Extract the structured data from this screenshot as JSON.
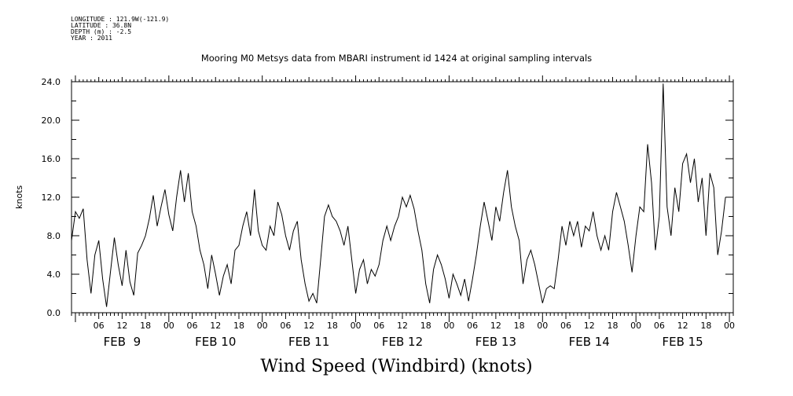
{
  "header": {
    "meta_lines": [
      "LONGITUDE : 121.9W(-121.9)",
      "LATITUDE : 36.8N",
      "DEPTH (m) : -2.5",
      "YEAR : 2011"
    ]
  },
  "chart_data": {
    "type": "line",
    "title": "Mooring M0 Metsys data from MBARI instrument id 1424 at original sampling intervals",
    "xlabel": "Wind Speed (Windbird) (knots)",
    "ylabel": "knots",
    "ylim": [
      0,
      24
    ],
    "yticks": [
      "0.0",
      "4.0",
      "8.0",
      "12.0",
      "16.0",
      "20.0",
      "24.0"
    ],
    "x_hour_ticks": [
      "06",
      "12",
      "18",
      "00",
      "06",
      "12",
      "18",
      "00",
      "06",
      "12",
      "18",
      "00",
      "06",
      "12",
      "18",
      "00",
      "06",
      "12",
      "18",
      "00",
      "06",
      "12",
      "18",
      "00",
      "06",
      "12",
      "18",
      "00"
    ],
    "x_day_labels": [
      "FEB  9",
      "FEB 10",
      "FEB 11",
      "FEB 12",
      "FEB 13",
      "FEB 14",
      "FEB 15"
    ],
    "x_unit": "hours since 2011-02-09 00:00",
    "xlim": [
      -1,
      169
    ],
    "grid": false,
    "series": [
      {
        "values": [
          [
            -1,
            7.5
          ],
          [
            0,
            10.5
          ],
          [
            1,
            9.8
          ],
          [
            2,
            10.8
          ],
          [
            3,
            5.5
          ],
          [
            4,
            2.0
          ],
          [
            5,
            6.0
          ],
          [
            6,
            7.5
          ],
          [
            7,
            3.5
          ],
          [
            8,
            0.6
          ],
          [
            9,
            4.2
          ],
          [
            10,
            7.8
          ],
          [
            11,
            5.0
          ],
          [
            12,
            2.8
          ],
          [
            13,
            6.5
          ],
          [
            14,
            3.2
          ],
          [
            15,
            1.8
          ],
          [
            16,
            6.2
          ],
          [
            17,
            7.0
          ],
          [
            18,
            8.0
          ],
          [
            19,
            9.8
          ],
          [
            20,
            12.2
          ],
          [
            21,
            9.0
          ],
          [
            22,
            11.0
          ],
          [
            23,
            12.8
          ],
          [
            24,
            10.2
          ],
          [
            25,
            8.5
          ],
          [
            26,
            12.0
          ],
          [
            27,
            14.8
          ],
          [
            28,
            11.5
          ],
          [
            29,
            14.5
          ],
          [
            30,
            10.5
          ],
          [
            31,
            9.0
          ],
          [
            32,
            6.5
          ],
          [
            33,
            5.0
          ],
          [
            34,
            2.5
          ],
          [
            35,
            6.0
          ],
          [
            36,
            4.0
          ],
          [
            37,
            1.8
          ],
          [
            38,
            3.8
          ],
          [
            39,
            5.0
          ],
          [
            40,
            3.0
          ],
          [
            41,
            6.5
          ],
          [
            42,
            7.0
          ],
          [
            43,
            9.0
          ],
          [
            44,
            10.5
          ],
          [
            45,
            8.0
          ],
          [
            46,
            12.8
          ],
          [
            47,
            8.5
          ],
          [
            48,
            7.0
          ],
          [
            49,
            6.5
          ],
          [
            50,
            9.0
          ],
          [
            51,
            8.0
          ],
          [
            52,
            11.5
          ],
          [
            53,
            10.2
          ],
          [
            54,
            8.0
          ],
          [
            55,
            6.5
          ],
          [
            56,
            8.5
          ],
          [
            57,
            9.5
          ],
          [
            58,
            5.5
          ],
          [
            59,
            3.0
          ],
          [
            60,
            1.2
          ],
          [
            61,
            2.0
          ],
          [
            62,
            1.0
          ],
          [
            63,
            5.5
          ],
          [
            64,
            10.0
          ],
          [
            65,
            11.2
          ],
          [
            66,
            10.0
          ],
          [
            67,
            9.5
          ],
          [
            68,
            8.5
          ],
          [
            69,
            7.0
          ],
          [
            70,
            9.0
          ],
          [
            71,
            5.5
          ],
          [
            72,
            2.0
          ],
          [
            73,
            4.5
          ],
          [
            74,
            5.5
          ],
          [
            75,
            3.0
          ],
          [
            76,
            4.5
          ],
          [
            77,
            3.8
          ],
          [
            78,
            5.0
          ],
          [
            79,
            7.5
          ],
          [
            80,
            9.0
          ],
          [
            81,
            7.5
          ],
          [
            82,
            9.0
          ],
          [
            83,
            10.0
          ],
          [
            84,
            12.0
          ],
          [
            85,
            11.0
          ],
          [
            86,
            12.2
          ],
          [
            87,
            10.8
          ],
          [
            88,
            8.5
          ],
          [
            89,
            6.5
          ],
          [
            90,
            3.0
          ],
          [
            91,
            1.0
          ],
          [
            92,
            4.5
          ],
          [
            93,
            6.0
          ],
          [
            94,
            5.0
          ],
          [
            95,
            3.5
          ],
          [
            96,
            1.5
          ],
          [
            97,
            4.0
          ],
          [
            98,
            3.0
          ],
          [
            99,
            1.8
          ],
          [
            100,
            3.5
          ],
          [
            101,
            1.2
          ],
          [
            102,
            3.5
          ],
          [
            103,
            6.0
          ],
          [
            104,
            9.0
          ],
          [
            105,
            11.5
          ],
          [
            106,
            9.5
          ],
          [
            107,
            7.5
          ],
          [
            108,
            11.0
          ],
          [
            109,
            9.5
          ],
          [
            110,
            12.5
          ],
          [
            111,
            14.8
          ],
          [
            112,
            11.0
          ],
          [
            113,
            9.0
          ],
          [
            114,
            7.5
          ],
          [
            115,
            3.0
          ],
          [
            116,
            5.5
          ],
          [
            117,
            6.5
          ],
          [
            118,
            5.0
          ],
          [
            119,
            3.0
          ],
          [
            120,
            1.0
          ],
          [
            121,
            2.5
          ],
          [
            122,
            2.8
          ],
          [
            123,
            2.5
          ],
          [
            124,
            5.5
          ],
          [
            125,
            9.0
          ],
          [
            126,
            7.0
          ],
          [
            127,
            9.5
          ],
          [
            128,
            8.0
          ],
          [
            129,
            9.5
          ],
          [
            130,
            6.8
          ],
          [
            131,
            9.0
          ],
          [
            132,
            8.5
          ],
          [
            133,
            10.5
          ],
          [
            134,
            8.0
          ],
          [
            135,
            6.5
          ],
          [
            136,
            8.0
          ],
          [
            137,
            6.5
          ],
          [
            138,
            10.5
          ],
          [
            139,
            12.5
          ],
          [
            140,
            11.0
          ],
          [
            141,
            9.5
          ],
          [
            142,
            7.0
          ],
          [
            143,
            4.2
          ],
          [
            144,
            8.0
          ],
          [
            145,
            11.0
          ],
          [
            146,
            10.5
          ],
          [
            147,
            17.5
          ],
          [
            148,
            13.5
          ],
          [
            149,
            6.5
          ],
          [
            150,
            10.0
          ],
          [
            151,
            23.8
          ],
          [
            152,
            11.0
          ],
          [
            153,
            8.0
          ],
          [
            154,
            13.0
          ],
          [
            155,
            10.5
          ],
          [
            156,
            15.5
          ],
          [
            157,
            16.5
          ],
          [
            158,
            13.5
          ],
          [
            159,
            16.0
          ],
          [
            160,
            11.5
          ],
          [
            161,
            14.0
          ],
          [
            162,
            8.0
          ],
          [
            163,
            14.5
          ],
          [
            164,
            13.0
          ],
          [
            165,
            6.0
          ],
          [
            166,
            8.5
          ],
          [
            167,
            12.0
          ]
        ]
      }
    ]
  }
}
